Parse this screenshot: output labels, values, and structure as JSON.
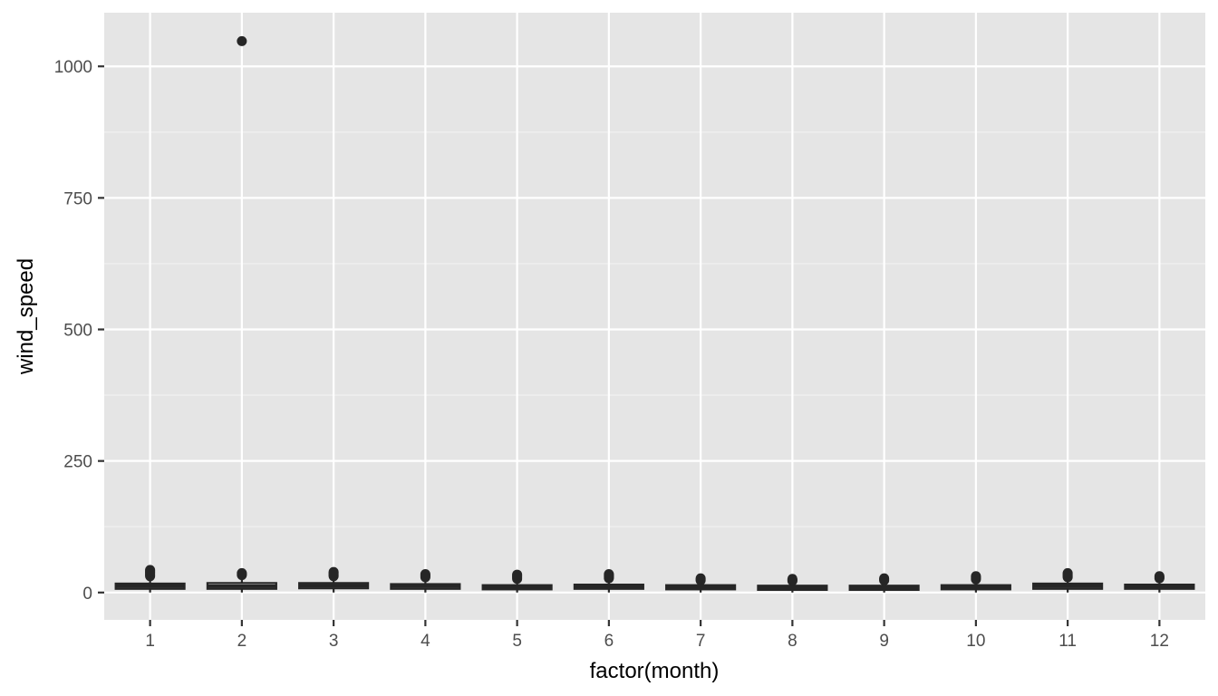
{
  "chart_data": {
    "type": "boxplot",
    "xlabel": "factor(month)",
    "ylabel": "wind_speed",
    "categories": [
      "1",
      "2",
      "3",
      "4",
      "5",
      "6",
      "7",
      "8",
      "9",
      "10",
      "11",
      "12"
    ],
    "y_ticks": [
      0,
      250,
      500,
      750,
      1000
    ],
    "y_tick_labels": [
      "0",
      "250",
      "500",
      "750",
      "1000"
    ],
    "ylim": [
      -52,
      1102
    ],
    "grid": true,
    "legend": "none",
    "colors": {
      "panel_background": "#e5e5e5",
      "grid_major": "#ffffff",
      "grid_minor": "#f2f2f2",
      "box": "#262626",
      "tick_text": "#4d4d4d",
      "title_text": "#000000"
    },
    "series": [
      {
        "category": "1",
        "min": 0,
        "q1": 7,
        "median": 12,
        "q3": 17,
        "max": 30,
        "outliers": [
          31,
          33,
          35,
          37,
          39,
          41,
          43
        ]
      },
      {
        "category": "2",
        "min": 0,
        "q1": 7,
        "median": 12,
        "q3": 18,
        "max": 31,
        "outliers": [
          33,
          35,
          37,
          1048
        ]
      },
      {
        "category": "3",
        "min": 0,
        "q1": 8,
        "median": 13,
        "q3": 18,
        "max": 30,
        "outliers": [
          31,
          33,
          35,
          37,
          39
        ]
      },
      {
        "category": "4",
        "min": 0,
        "q1": 7,
        "median": 12,
        "q3": 16,
        "max": 28,
        "outliers": [
          29,
          31,
          33,
          35
        ]
      },
      {
        "category": "5",
        "min": 0,
        "q1": 6,
        "median": 10,
        "q3": 14,
        "max": 25,
        "outliers": [
          26,
          28,
          30,
          32,
          34
        ]
      },
      {
        "category": "6",
        "min": 0,
        "q1": 7,
        "median": 11,
        "q3": 15,
        "max": 26,
        "outliers": [
          27,
          29,
          31,
          33,
          35
        ]
      },
      {
        "category": "7",
        "min": 0,
        "q1": 6,
        "median": 10,
        "q3": 14,
        "max": 22,
        "outliers": [
          23,
          25,
          27
        ]
      },
      {
        "category": "8",
        "min": 0,
        "q1": 5,
        "median": 9,
        "q3": 13,
        "max": 21,
        "outliers": [
          22,
          24,
          26
        ]
      },
      {
        "category": "9",
        "min": 0,
        "q1": 5,
        "median": 9,
        "q3": 13,
        "max": 22,
        "outliers": [
          23,
          25,
          27
        ]
      },
      {
        "category": "10",
        "min": 0,
        "q1": 6,
        "median": 10,
        "q3": 14,
        "max": 24,
        "outliers": [
          25,
          27,
          29,
          31
        ]
      },
      {
        "category": "11",
        "min": 0,
        "q1": 7,
        "median": 12,
        "q3": 17,
        "max": 28,
        "outliers": [
          29,
          31,
          33,
          35,
          37
        ]
      },
      {
        "category": "12",
        "min": 0,
        "q1": 7,
        "median": 11,
        "q3": 15,
        "max": 26,
        "outliers": [
          27,
          29,
          31
        ]
      }
    ]
  }
}
